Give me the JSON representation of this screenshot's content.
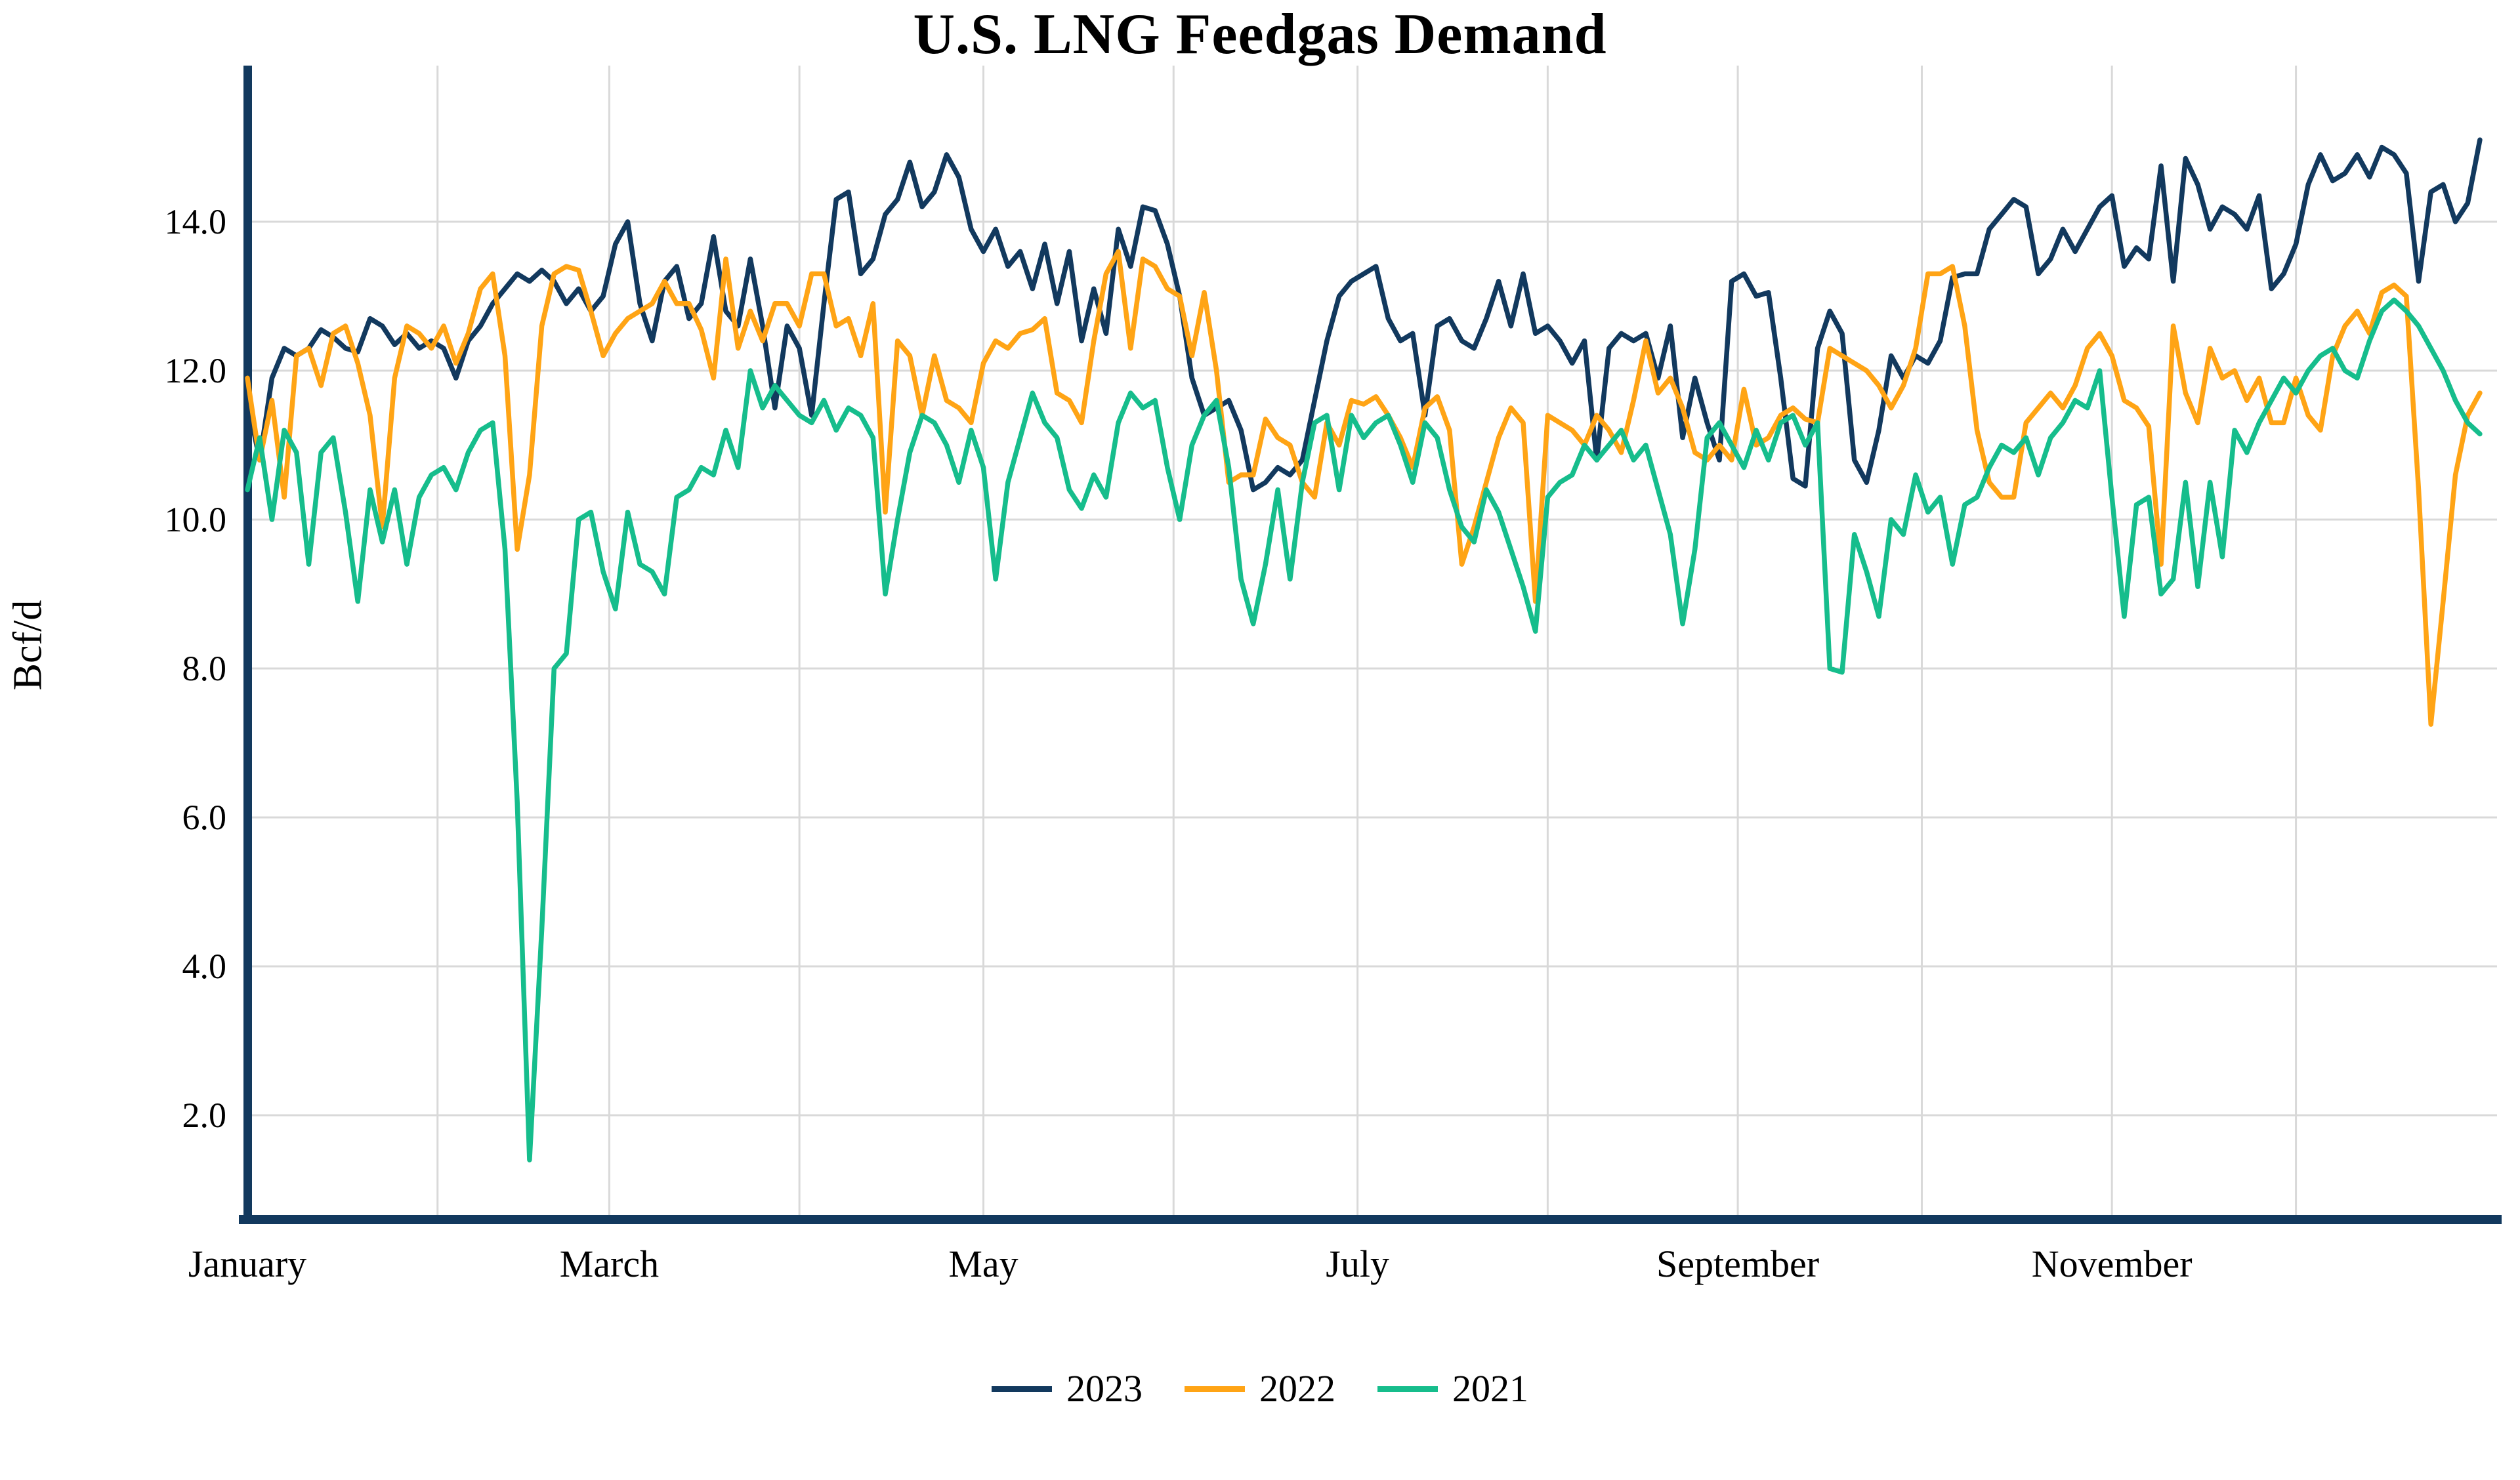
{
  "title": "U.S. LNG Feedgas Demand",
  "y_axis": {
    "label": "Bcf/d",
    "tick_labels": [
      "14.0",
      "12.0",
      "10.0",
      "8.0",
      "6.0",
      "4.0",
      "2.0"
    ],
    "tick_values": [
      14,
      12,
      10,
      8,
      6,
      4,
      2
    ]
  },
  "x_axis": {
    "tick_labels": [
      "January",
      "March",
      "May",
      "July",
      "September",
      "November"
    ],
    "tick_month_indices": [
      0,
      2,
      4,
      6,
      8,
      10
    ]
  },
  "legend": [
    {
      "label": "2023",
      "color": "#12395E"
    },
    {
      "label": "2022",
      "color": "#FFA415"
    },
    {
      "label": "2021",
      "color": "#16BD8C"
    }
  ],
  "colors": {
    "axis": "#12395E",
    "gridline": "#D9D9D9",
    "text": "#000000"
  },
  "chart_data": {
    "type": "line",
    "title": "U.S. LNG Feedgas Demand",
    "ylabel": "Bcf/d",
    "x_unit": "day_of_year",
    "x_start_day": 0,
    "x_step_days": 2,
    "ylim": [
      0.6,
      16.1
    ],
    "grid": true,
    "legend_position": "bottom",
    "series": [
      {
        "name": "2023",
        "color": "#12395E",
        "values": [
          11.6,
          10.8,
          11.9,
          12.3,
          12.2,
          12.3,
          12.55,
          12.45,
          12.3,
          12.25,
          12.7,
          12.6,
          12.35,
          12.5,
          12.3,
          12.4,
          12.3,
          11.9,
          12.4,
          12.6,
          12.9,
          13.1,
          13.3,
          13.2,
          13.35,
          13.2,
          12.9,
          13.1,
          12.8,
          13.0,
          13.7,
          14.0,
          12.9,
          12.4,
          13.2,
          13.4,
          12.7,
          12.9,
          13.8,
          12.8,
          12.6,
          13.5,
          12.6,
          11.5,
          12.6,
          12.3,
          11.4,
          12.9,
          14.3,
          14.4,
          13.3,
          13.5,
          14.1,
          14.3,
          14.8,
          14.2,
          14.4,
          14.9,
          14.6,
          13.9,
          13.6,
          13.9,
          13.4,
          13.6,
          13.1,
          13.7,
          12.9,
          13.6,
          12.4,
          13.1,
          12.5,
          13.9,
          13.4,
          14.2,
          14.15,
          13.7,
          13.0,
          11.9,
          11.4,
          11.5,
          11.6,
          11.2,
          10.4,
          10.5,
          10.7,
          10.6,
          10.8,
          11.6,
          12.4,
          13.0,
          13.2,
          13.3,
          13.4,
          12.7,
          12.4,
          12.5,
          11.4,
          12.6,
          12.7,
          12.4,
          12.3,
          12.7,
          13.2,
          12.6,
          13.3,
          12.5,
          12.6,
          12.4,
          12.1,
          12.4,
          10.8,
          12.3,
          12.5,
          12.4,
          12.5,
          11.9,
          12.6,
          11.1,
          11.9,
          11.3,
          10.8,
          13.2,
          13.3,
          13.0,
          13.05,
          11.9,
          10.55,
          10.45,
          12.3,
          12.8,
          12.5,
          10.8,
          10.5,
          11.2,
          12.2,
          11.9,
          12.2,
          12.1,
          12.4,
          13.25,
          13.3,
          13.3,
          13.9,
          14.1,
          14.3,
          14.2,
          13.3,
          13.5,
          13.9,
          13.6,
          13.9,
          14.2,
          14.35,
          13.4,
          13.65,
          13.5,
          14.75,
          13.2,
          14.85,
          14.5,
          13.9,
          14.2,
          14.1,
          13.9,
          14.35,
          13.1,
          13.3,
          13.7,
          14.5,
          14.9,
          14.55,
          14.65,
          14.9,
          14.6,
          15.0,
          14.9,
          14.65,
          13.2,
          14.4,
          14.5,
          14.0,
          14.25,
          15.1
        ]
      },
      {
        "name": "2022",
        "color": "#FFA415",
        "values": [
          11.9,
          10.8,
          11.6,
          10.3,
          12.2,
          12.3,
          11.8,
          12.5,
          12.6,
          12.1,
          11.4,
          9.9,
          11.9,
          12.6,
          12.5,
          12.3,
          12.6,
          12.1,
          12.5,
          13.1,
          13.3,
          12.2,
          9.6,
          10.6,
          12.6,
          13.3,
          13.4,
          13.35,
          12.8,
          12.2,
          12.5,
          12.7,
          12.8,
          12.9,
          13.2,
          12.9,
          12.9,
          12.55,
          11.9,
          13.5,
          12.3,
          12.8,
          12.4,
          12.9,
          12.9,
          12.6,
          13.3,
          13.3,
          12.6,
          12.7,
          12.2,
          12.9,
          10.1,
          12.4,
          12.2,
          11.4,
          12.2,
          11.6,
          11.5,
          11.3,
          12.1,
          12.4,
          12.3,
          12.5,
          12.55,
          12.7,
          11.7,
          11.6,
          11.3,
          12.4,
          13.3,
          13.6,
          12.3,
          13.5,
          13.4,
          13.1,
          13.0,
          12.2,
          13.05,
          12.0,
          10.5,
          10.6,
          10.6,
          11.35,
          11.1,
          11.0,
          10.5,
          10.3,
          11.3,
          11.0,
          11.6,
          11.55,
          11.65,
          11.4,
          11.1,
          10.7,
          11.5,
          11.65,
          11.2,
          9.4,
          9.9,
          10.5,
          11.1,
          11.5,
          11.3,
          8.9,
          11.4,
          11.3,
          11.2,
          11.0,
          11.4,
          11.2,
          10.9,
          11.6,
          12.4,
          11.7,
          11.9,
          11.5,
          10.9,
          10.8,
          11.0,
          10.8,
          11.75,
          11.0,
          11.1,
          11.4,
          11.5,
          11.35,
          11.3,
          12.3,
          12.2,
          12.1,
          12.0,
          11.8,
          11.5,
          11.8,
          12.3,
          13.3,
          13.3,
          13.4,
          12.6,
          11.2,
          10.5,
          10.3,
          10.3,
          11.3,
          11.5,
          11.7,
          11.5,
          11.8,
          12.3,
          12.5,
          12.2,
          11.6,
          11.5,
          11.25,
          9.4,
          12.6,
          11.7,
          11.3,
          12.3,
          11.9,
          12.0,
          11.6,
          11.9,
          11.3,
          11.3,
          11.9,
          11.4,
          11.2,
          12.2,
          12.6,
          12.8,
          12.5,
          13.05,
          13.15,
          13.0,
          10.4,
          7.25,
          8.9,
          10.6,
          11.4,
          11.7
        ]
      },
      {
        "name": "2021",
        "color": "#16BD8C",
        "values": [
          10.4,
          11.1,
          10.0,
          11.2,
          10.9,
          9.4,
          10.9,
          11.1,
          10.1,
          8.9,
          10.4,
          9.7,
          10.4,
          9.4,
          10.3,
          10.6,
          10.7,
          10.4,
          10.9,
          11.2,
          11.3,
          9.6,
          6.2,
          1.4,
          4.5,
          8.0,
          8.2,
          10.0,
          10.1,
          9.3,
          8.8,
          10.1,
          9.4,
          9.3,
          9.0,
          10.3,
          10.4,
          10.7,
          10.6,
          11.2,
          10.7,
          12.0,
          11.5,
          11.8,
          11.6,
          11.4,
          11.3,
          11.6,
          11.2,
          11.5,
          11.4,
          11.1,
          9.0,
          10.0,
          10.9,
          11.4,
          11.3,
          11.0,
          10.5,
          11.2,
          10.7,
          9.2,
          10.5,
          11.1,
          11.7,
          11.3,
          11.1,
          10.4,
          10.15,
          10.6,
          10.3,
          11.3,
          11.7,
          11.5,
          11.6,
          10.7,
          10.0,
          11.0,
          11.4,
          11.6,
          10.7,
          9.2,
          8.6,
          9.4,
          10.4,
          9.2,
          10.5,
          11.3,
          11.4,
          10.4,
          11.4,
          11.1,
          11.3,
          11.4,
          11.0,
          10.5,
          11.3,
          11.1,
          10.4,
          9.9,
          9.7,
          10.4,
          10.1,
          9.6,
          9.1,
          8.5,
          10.3,
          10.5,
          10.6,
          11.0,
          10.8,
          11.0,
          11.2,
          10.8,
          11.0,
          10.4,
          9.8,
          8.6,
          9.6,
          11.1,
          11.3,
          11.0,
          10.7,
          11.2,
          10.8,
          11.3,
          11.4,
          11.0,
          11.3,
          8.0,
          7.95,
          9.8,
          9.3,
          8.7,
          10.0,
          9.8,
          10.6,
          10.1,
          10.3,
          9.4,
          10.2,
          10.3,
          10.7,
          11.0,
          10.9,
          11.1,
          10.6,
          11.1,
          11.3,
          11.6,
          11.5,
          12.0,
          10.3,
          8.7,
          10.2,
          10.3,
          9.0,
          9.2,
          10.5,
          9.1,
          10.5,
          9.5,
          11.2,
          10.9,
          11.3,
          11.6,
          11.9,
          11.7,
          12.0,
          12.2,
          12.3,
          12.0,
          11.9,
          12.4,
          12.8,
          12.95,
          12.8,
          12.6,
          12.3,
          12.0,
          11.6,
          11.3,
          11.15
        ]
      }
    ]
  }
}
